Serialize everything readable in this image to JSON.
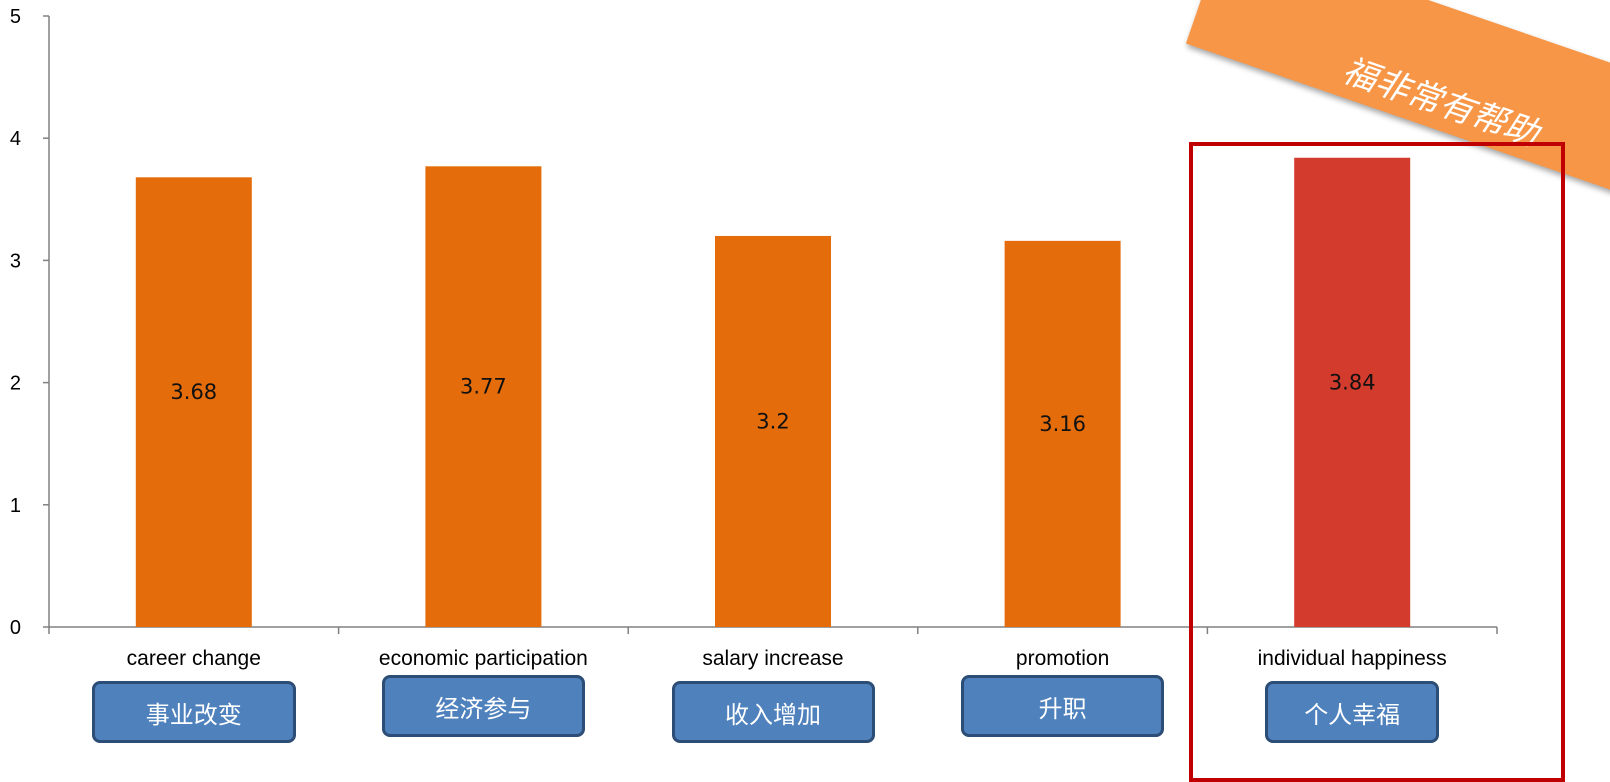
{
  "chart_data": {
    "type": "bar",
    "categories": [
      "career change",
      "economic participation",
      "salary increase",
      "promotion",
      "individual happiness"
    ],
    "values": [
      3.68,
      3.77,
      3.2,
      3.16,
      3.84
    ],
    "value_labels": [
      "3.68",
      "3.77",
      "3.2",
      "3.16",
      "3.84"
    ],
    "category_labels_cn": [
      "事业改变",
      "经济参与",
      "收入增加",
      "升职",
      "个人幸福"
    ],
    "yticks": [
      "0",
      "1",
      "2",
      "3",
      "4",
      "5"
    ],
    "ylim": [
      0,
      5
    ],
    "grid": false,
    "bar_color": "#e46c0a",
    "highlight_bar_color": "#d33b2c",
    "highlight_index": 4
  },
  "banner": {
    "text": "福非常有帮助",
    "color": "#f79646"
  },
  "colors": {
    "label_box": "#4f81bd",
    "label_box_border": "#2c4d75",
    "highlight_frame": "#c00000"
  }
}
